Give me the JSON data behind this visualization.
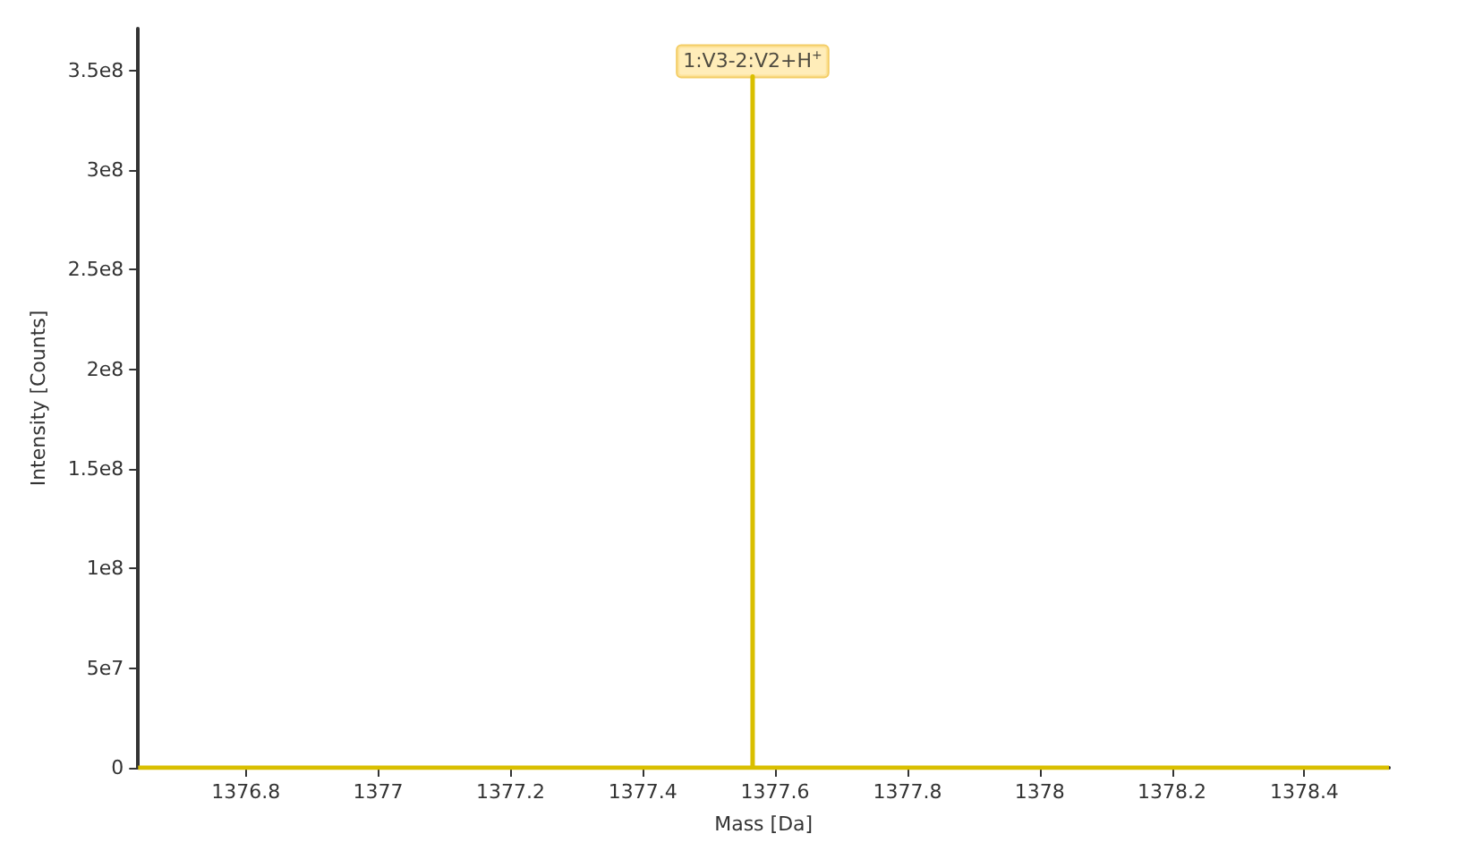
{
  "chart_data": {
    "type": "line",
    "xlabel": "Mass [Da]",
    "ylabel": "Intensity [Counts]",
    "x": [
      1376.637,
      1377.566,
      1377.566,
      1377.566,
      1378.528
    ],
    "series": [
      {
        "color": "#d9bf00",
        "values": [
          0,
          0,
          347000000,
          0,
          0
        ]
      }
    ],
    "xlim": [
      1376.637,
      1378.528
    ],
    "xticks": [
      1376.8,
      1377,
      1377.2,
      1377.4,
      1377.6,
      1377.8,
      1378,
      1378.2,
      1378.4
    ],
    "ylim": [
      0,
      371000000
    ],
    "yticks": [
      {
        "value": 0,
        "label": "0"
      },
      {
        "value": 50000000,
        "label": "5e7"
      },
      {
        "value": 100000000,
        "label": "1e8"
      },
      {
        "value": 150000000,
        "label": "1.5e8"
      },
      {
        "value": 200000000,
        "label": "2e8"
      },
      {
        "value": 250000000,
        "label": "2.5e8"
      },
      {
        "value": 300000000,
        "label": "3e8"
      },
      {
        "value": 350000000,
        "label": "3.5e8"
      }
    ],
    "annotations": [
      {
        "text": "1:V3-2:V2+H$^{+}$",
        "x": 1377.566,
        "y": 347000000
      }
    ],
    "marker": "none",
    "line_style": "solid"
  }
}
